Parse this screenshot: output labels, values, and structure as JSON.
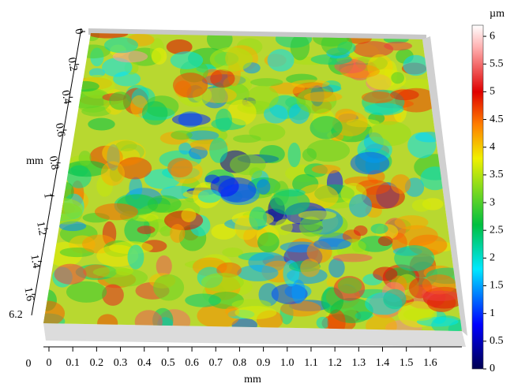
{
  "chart_data": {
    "type": "surface3d",
    "xlabel": "mm",
    "ylabel": "mm",
    "xlim": [
      0,
      1.68
    ],
    "xticks": [
      0,
      0.1,
      0.2,
      0.3,
      0.4,
      0.5,
      0.6,
      0.7,
      0.8,
      0.9,
      {
        "value": 1,
        "label": "1.0"
      },
      1.1,
      1.2,
      1.3,
      1.4,
      1.5,
      1.6
    ],
    "ylim": [
      0,
      1.68
    ],
    "yticks": [
      0,
      0.2,
      0.4,
      0.6,
      0.8,
      1,
      1.2,
      1.4,
      1.6
    ],
    "zlim": [
      0,
      6.2
    ],
    "zticks": [
      0,
      6.2
    ],
    "colorbar": {
      "label": "µm",
      "lim": [
        0,
        6.2
      ],
      "ticks": [
        0,
        0.5,
        1,
        1.5,
        2,
        2.5,
        3,
        3.5,
        4,
        4.5,
        5,
        5.5,
        6
      ]
    },
    "colormap": [
      {
        "value": 0,
        "color": "#000050"
      },
      {
        "value": 0.8,
        "color": "#0000ff"
      },
      {
        "value": 1.8,
        "color": "#00e8ff"
      },
      {
        "value": 2.6,
        "color": "#00c040"
      },
      {
        "value": 3.8,
        "color": "#f0f000"
      },
      {
        "value": 4.4,
        "color": "#ff8000"
      },
      {
        "value": 5,
        "color": "#e00000"
      },
      {
        "value": 5.8,
        "color": "#ffb0b0"
      },
      {
        "value": 6.2,
        "color": "#ffffff"
      }
    ]
  }
}
